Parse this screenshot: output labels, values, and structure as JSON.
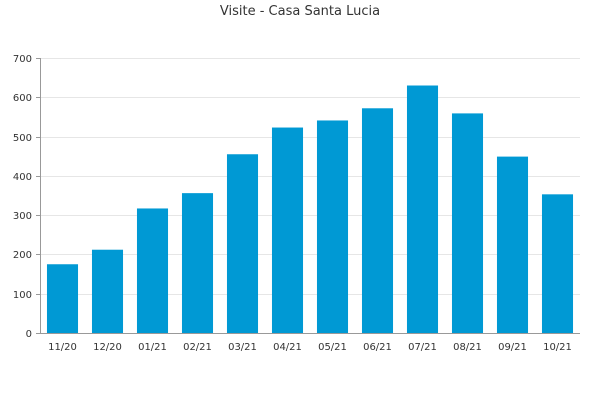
{
  "chart_data": {
    "type": "bar",
    "title": "Visite - Casa Santa Lucia",
    "xlabel": "",
    "ylabel": "",
    "categories": [
      "11/20",
      "12/20",
      "01/21",
      "02/21",
      "03/21",
      "04/21",
      "05/21",
      "06/21",
      "07/21",
      "08/21",
      "09/21",
      "10/21"
    ],
    "values": [
      175,
      212,
      317,
      356,
      455,
      523,
      541,
      572,
      630,
      559,
      449,
      353
    ],
    "ylim": [
      0,
      700
    ],
    "yticks": [
      0,
      100,
      200,
      300,
      400,
      500,
      600,
      700
    ],
    "grid": true,
    "legend": "none",
    "colors": {
      "bar": "#0099d4"
    }
  }
}
